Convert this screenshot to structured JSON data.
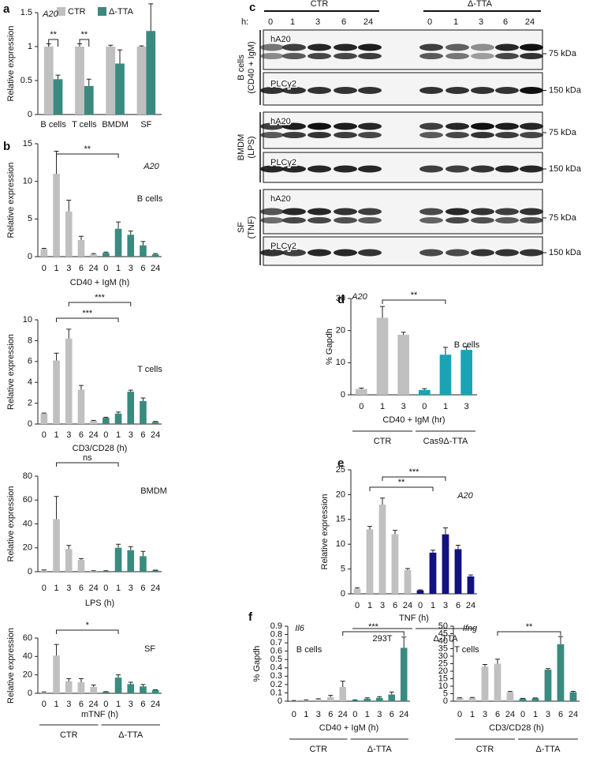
{
  "chart_data": [
    {
      "type": "bar",
      "panel": "a",
      "ylabel": "Relative expression",
      "categories": [
        "B cells",
        "T cells",
        "BMDM",
        "SF"
      ],
      "series": [
        {
          "name": "CTR",
          "color": "#c0c0c0",
          "values": [
            1,
            1,
            1,
            1
          ],
          "errors": [
            0.04,
            0.04,
            0.02,
            0.01
          ]
        },
        {
          "name": "Δ-TTA",
          "color": "#3a8a80",
          "values": [
            0.52,
            0.42,
            0.75,
            1.23
          ],
          "errors": [
            0.06,
            0.1,
            0.2,
            0.4
          ]
        }
      ],
      "ylim": [
        0,
        1.5
      ],
      "yticks": [
        0,
        0.5,
        1,
        1.5
      ],
      "legend": "top",
      "annotations": [
        "A20"
      ],
      "significance": [
        "**",
        "**"
      ]
    },
    {
      "type": "bar",
      "panel": "b",
      "ylabel": "Relative expression",
      "xlabel": "CD40 + IgM (h)",
      "categories": [
        "0",
        "1",
        "3",
        "6",
        "24"
      ],
      "series": [
        {
          "color": "#c0c0c0",
          "values": [
            1,
            11,
            6,
            2.2,
            0.3
          ],
          "errors": [
            0.1,
            3,
            1.5,
            0.5,
            0.1
          ]
        },
        {
          "color": "#3a8a80",
          "values": [
            0.5,
            3.7,
            2.9,
            1.5,
            0.3
          ],
          "errors": [
            0.1,
            0.9,
            0.5,
            0.5,
            0.1
          ]
        }
      ],
      "ylim": [
        0,
        15
      ],
      "yticks": [
        0,
        5,
        10,
        15
      ],
      "annotations": [
        "A20",
        "B cells"
      ],
      "significance": [
        "**"
      ]
    },
    {
      "type": "bar",
      "ylabel": "Relative expression",
      "xlabel": "CD3/CD28 (h)",
      "categories": [
        "0",
        "1",
        "3",
        "6",
        "24"
      ],
      "series": [
        {
          "color": "#c0c0c0",
          "values": [
            1,
            6.1,
            8.2,
            3.3,
            0.3
          ],
          "errors": [
            0.05,
            0.7,
            0.9,
            0.4,
            0.05
          ]
        },
        {
          "color": "#3a8a80",
          "values": [
            0.6,
            1,
            3.1,
            2.2,
            0.2
          ],
          "errors": [
            0.05,
            0.15,
            0.15,
            0.3,
            0.05
          ]
        }
      ],
      "ylim": [
        0,
        10
      ],
      "yticks": [
        0,
        2,
        4,
        6,
        8,
        10
      ],
      "annotations": [
        "T cells"
      ],
      "significance": [
        "***",
        "***"
      ]
    },
    {
      "type": "bar",
      "ylabel": "Relative expression",
      "xlabel": "LPS (h)",
      "categories": [
        "0",
        "1",
        "3",
        "6",
        "24"
      ],
      "series": [
        {
          "color": "#c0c0c0",
          "values": [
            1,
            44,
            19,
            10,
            0.5
          ],
          "errors": [
            0.5,
            19,
            3,
            1,
            0.3
          ]
        },
        {
          "color": "#3a8a80",
          "values": [
            0.5,
            20,
            18,
            13,
            1
          ],
          "errors": [
            0.3,
            3,
            3,
            4,
            0.3
          ]
        }
      ],
      "ylim": [
        0,
        80
      ],
      "yticks": [
        0,
        20,
        40,
        60,
        80
      ],
      "annotations": [
        "BMDM"
      ],
      "significance": [
        "ns"
      ]
    },
    {
      "type": "bar",
      "ylabel": "Relative expression",
      "xlabel": "mTNF (h)",
      "categories": [
        "0",
        "1",
        "3",
        "6",
        "24"
      ],
      "series": [
        {
          "name": "CTR",
          "color": "#c0c0c0",
          "values": [
            1,
            41,
            13,
            12,
            7
          ],
          "errors": [
            0.5,
            12,
            3,
            4,
            2
          ]
        },
        {
          "name": "Δ-TTA",
          "color": "#3a8a80",
          "values": [
            1.5,
            17,
            10,
            7.5,
            3.5
          ],
          "errors": [
            0.3,
            3,
            2,
            2,
            0.5
          ]
        }
      ],
      "ylim": [
        0,
        60
      ],
      "yticks": [
        0,
        20,
        40,
        60
      ],
      "annotations": [
        "SF"
      ],
      "significance": [
        "*"
      ]
    },
    {
      "type": "bar",
      "panel": "d",
      "ylabel": "% Gapdh",
      "xlabel": "CD40 + IgM (hr)",
      "categories": [
        "0",
        "1",
        "3"
      ],
      "series": [
        {
          "name": "CTR",
          "color": "#c0c0c0",
          "values": [
            1.8,
            24,
            18.7
          ],
          "errors": [
            0.3,
            3.5,
            0.8
          ]
        },
        {
          "name": "Cas9Δ-TTA",
          "color": "#1ba3b5",
          "values": [
            1.5,
            12.5,
            14
          ],
          "errors": [
            0.4,
            2.3,
            1
          ]
        }
      ],
      "ylim": [
        0,
        30
      ],
      "yticks": [
        0,
        10,
        20,
        30
      ],
      "annotations": [
        "A20",
        "B cells"
      ],
      "significance": [
        "**"
      ]
    },
    {
      "type": "bar",
      "panel": "e",
      "ylabel": "Relative expression",
      "xlabel": "TNF (h)",
      "categories": [
        "0",
        "1",
        "3",
        "6",
        "24"
      ],
      "series": [
        {
          "name": "293T",
          "color": "#c0c0c0",
          "values": [
            1,
            13,
            18,
            12,
            4.8
          ],
          "errors": [
            0.2,
            0.6,
            1.3,
            0.8,
            0.3
          ]
        },
        {
          "name": "Δ-TTA",
          "color": "#12127e",
          "values": [
            0.7,
            8.3,
            12,
            9,
            3.5
          ],
          "errors": [
            0.1,
            0.5,
            1.3,
            0.8,
            0.3
          ]
        }
      ],
      "ylim": [
        0,
        25
      ],
      "yticks": [
        0,
        5,
        10,
        15,
        20,
        25
      ],
      "annotations": [
        "A20"
      ],
      "significance": [
        "***",
        "**"
      ]
    },
    {
      "type": "bar",
      "panel": "f",
      "ylabel": "% Gapdh",
      "xlabel": "CD40 + IgM (h)",
      "categories": [
        "0",
        "1",
        "3",
        "6",
        "24"
      ],
      "series": [
        {
          "name": "CTR",
          "color": "#c0c0c0",
          "values": [
            0.005,
            0.01,
            0.02,
            0.05,
            0.17
          ],
          "errors": [
            0.003,
            0.005,
            0.01,
            0.02,
            0.07
          ]
        },
        {
          "name": "Δ-TTA",
          "color": "#3a8a80",
          "values": [
            0.01,
            0.03,
            0.04,
            0.08,
            0.64
          ],
          "errors": [
            0.005,
            0.01,
            0.015,
            0.03,
            0.13
          ]
        }
      ],
      "ylim": [
        0,
        0.9
      ],
      "yticks": [
        0,
        0.1,
        0.2,
        0.3,
        0.4,
        0.5,
        0.6,
        0.7,
        0.8,
        0.9
      ],
      "annotations": [
        "Il6",
        "B cells"
      ],
      "significance": [
        "***"
      ]
    },
    {
      "type": "bar",
      "xlabel": "CD3/CD28 (h)",
      "categories": [
        "0",
        "1",
        "3",
        "6",
        "24"
      ],
      "series": [
        {
          "name": "CTR",
          "color": "#c0c0c0",
          "values": [
            2,
            2.2,
            23,
            25,
            6
          ],
          "errors": [
            0.3,
            0.3,
            1.5,
            3,
            0.5
          ]
        },
        {
          "name": "Δ-TTA",
          "color": "#3a8a80",
          "values": [
            1.7,
            2,
            21,
            38,
            6
          ],
          "errors": [
            0.2,
            0.2,
            0.8,
            5,
            0.6
          ]
        }
      ],
      "ylim": [
        0,
        50
      ],
      "yticks": [
        0,
        5,
        10,
        15,
        20,
        25,
        30,
        35,
        40,
        45,
        50
      ],
      "annotations": [
        "Ifng",
        "T cells"
      ],
      "significance": [
        "**"
      ]
    }
  ],
  "blot": {
    "panel": "c",
    "hours_label": "h:",
    "timepoints": [
      "0",
      "1",
      "3",
      "6",
      "24"
    ],
    "groups": [
      "CTR",
      "Δ-TTA"
    ],
    "rows": [
      {
        "cell": [
          "B cells",
          "(CD40 + IgM)"
        ],
        "bands": [
          {
            "label": "hA20",
            "marker": "75 kDa"
          },
          {
            "label": "PLCγ2",
            "marker": "150 kDa"
          }
        ]
      },
      {
        "cell": [
          "BMDM",
          "(LPS)"
        ],
        "bands": [
          {
            "label": "hA20",
            "marker": "75 kDa"
          },
          {
            "label": "PLCγ2",
            "marker": "150 kDa"
          }
        ]
      },
      {
        "cell": [
          "SF",
          "(TNF)"
        ],
        "bands": [
          {
            "label": "hA20",
            "marker": "75 kDa"
          },
          {
            "label": "PLCγ2",
            "marker": "150 kDa"
          }
        ]
      }
    ]
  }
}
